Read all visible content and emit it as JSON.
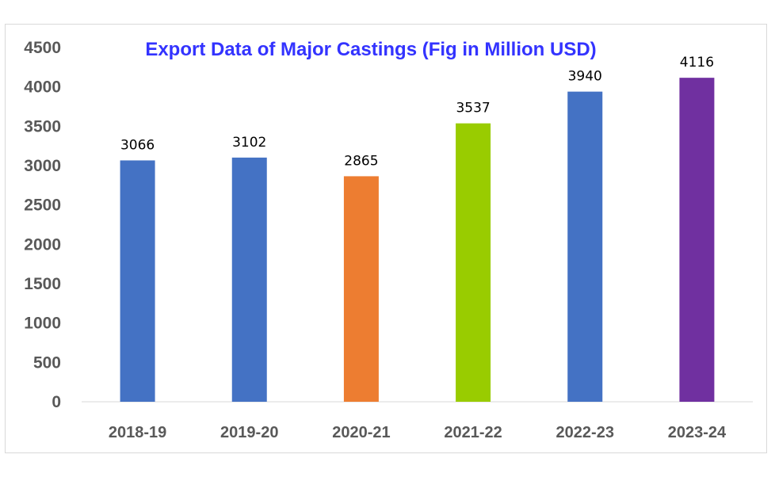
{
  "chart_data": {
    "type": "bar",
    "title": "Export Data of Major Castings (Fig in Million USD)",
    "categories": [
      "2018-19",
      "2019-20",
      "2020-21",
      "2021-22",
      "2022-23",
      "2023-24"
    ],
    "values": [
      3066,
      3102,
      2865,
      3537,
      3940,
      4116
    ],
    "data_labels": [
      "3066",
      "3102",
      "2865",
      "3537",
      "3940",
      "4116"
    ],
    "bar_colors": [
      "#4472c4",
      "#4472c4",
      "#ed7d31",
      "#99cc00",
      "#4472c4",
      "#7030a0"
    ],
    "ylim": [
      0,
      4500
    ],
    "yticks": [
      0,
      500,
      1000,
      1500,
      2000,
      2500,
      3000,
      3500,
      4000,
      4500
    ],
    "ytick_labels": [
      "0",
      "500",
      "1000",
      "1500",
      "2000",
      "2500",
      "3000",
      "3500",
      "4000",
      "4500"
    ],
    "xlabel": "",
    "ylabel": "",
    "grid": false,
    "legend": "none"
  }
}
